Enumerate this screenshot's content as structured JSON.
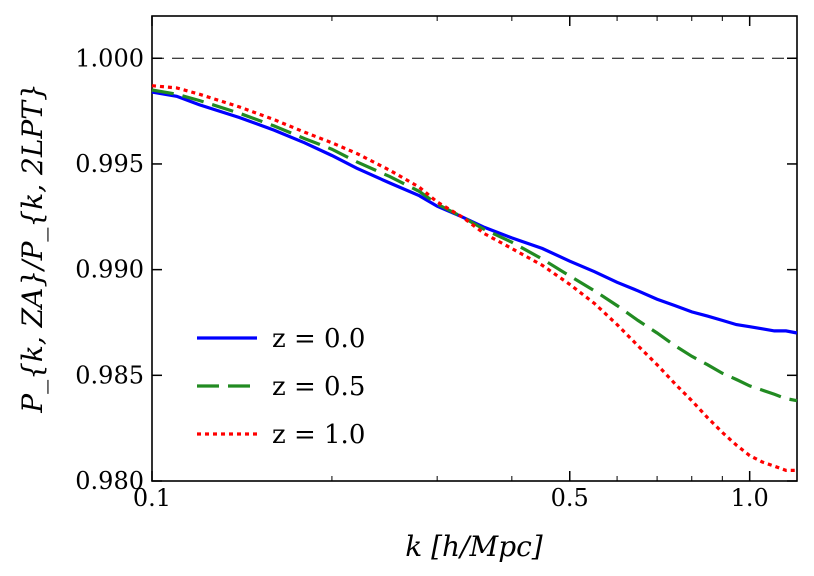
{
  "chart_data": {
    "type": "line",
    "xscale": "log",
    "xlim": [
      0.1,
      1.2
    ],
    "ylim": [
      0.98,
      1.002
    ],
    "xticks": [
      {
        "value": 0.1,
        "label": "0.1"
      },
      {
        "value": 0.5,
        "label": "0.5"
      },
      {
        "value": 1.0,
        "label": "1.0"
      }
    ],
    "yticks": [
      {
        "value": 0.98,
        "label": "0.980"
      },
      {
        "value": 0.985,
        "label": "0.985"
      },
      {
        "value": 0.99,
        "label": "0.990"
      },
      {
        "value": 0.995,
        "label": "0.995"
      },
      {
        "value": 1.0,
        "label": "1.000"
      }
    ],
    "xlabel": "k [h/Mpc]",
    "ylabel": "P_{k, ZA}/P_{k, 2LPT}",
    "reference_line": 1.0,
    "legend_position": "lower-left",
    "series": [
      {
        "name": "z=0.0",
        "legend_label": "z = 0.0",
        "color": "#0000ff",
        "style": "solid",
        "x": [
          0.1,
          0.11,
          0.12,
          0.14,
          0.16,
          0.18,
          0.2,
          0.22,
          0.25,
          0.28,
          0.3,
          0.33,
          0.36,
          0.4,
          0.45,
          0.5,
          0.55,
          0.6,
          0.65,
          0.7,
          0.75,
          0.8,
          0.85,
          0.9,
          0.95,
          1.0,
          1.05,
          1.1,
          1.15,
          1.2
        ],
        "y": [
          0.9984,
          0.9982,
          0.9978,
          0.9972,
          0.9966,
          0.996,
          0.9954,
          0.9948,
          0.9941,
          0.9935,
          0.993,
          0.9925,
          0.992,
          0.9915,
          0.991,
          0.9904,
          0.9899,
          0.9894,
          0.989,
          0.9886,
          0.9883,
          0.988,
          0.9878,
          0.9876,
          0.9874,
          0.9873,
          0.9872,
          0.9871,
          0.9871,
          0.987
        ]
      },
      {
        "name": "z=0.5",
        "legend_label": "z = 0.5",
        "color": "#228b22",
        "style": "dashed",
        "x": [
          0.1,
          0.11,
          0.12,
          0.14,
          0.16,
          0.18,
          0.2,
          0.22,
          0.25,
          0.28,
          0.3,
          0.33,
          0.36,
          0.4,
          0.45,
          0.5,
          0.55,
          0.6,
          0.65,
          0.7,
          0.75,
          0.8,
          0.85,
          0.9,
          0.95,
          1.0,
          1.05,
          1.1,
          1.15,
          1.2
        ],
        "y": [
          0.9985,
          0.9983,
          0.998,
          0.9974,
          0.9968,
          0.9962,
          0.9957,
          0.9951,
          0.9944,
          0.9937,
          0.9931,
          0.9925,
          0.9919,
          0.9913,
          0.9905,
          0.9897,
          0.989,
          0.9883,
          0.9876,
          0.987,
          0.9864,
          0.9859,
          0.9855,
          0.9851,
          0.9848,
          0.9845,
          0.9843,
          0.9841,
          0.9839,
          0.9838
        ]
      },
      {
        "name": "z=1.0",
        "legend_label": "z = 1.0",
        "color": "#ff0000",
        "style": "dotted",
        "x": [
          0.1,
          0.11,
          0.12,
          0.14,
          0.16,
          0.18,
          0.2,
          0.22,
          0.25,
          0.28,
          0.3,
          0.33,
          0.36,
          0.4,
          0.45,
          0.5,
          0.55,
          0.6,
          0.65,
          0.7,
          0.75,
          0.8,
          0.85,
          0.9,
          0.95,
          1.0,
          1.05,
          1.1,
          1.15,
          1.2
        ],
        "y": [
          0.9987,
          0.9986,
          0.9983,
          0.9977,
          0.9971,
          0.9965,
          0.996,
          0.9955,
          0.9947,
          0.9939,
          0.9932,
          0.9925,
          0.9917,
          0.991,
          0.9902,
          0.9893,
          0.9884,
          0.9874,
          0.9864,
          0.9855,
          0.9846,
          0.9838,
          0.983,
          0.9823,
          0.9817,
          0.9812,
          0.9809,
          0.9807,
          0.9805,
          0.9805
        ]
      }
    ]
  }
}
